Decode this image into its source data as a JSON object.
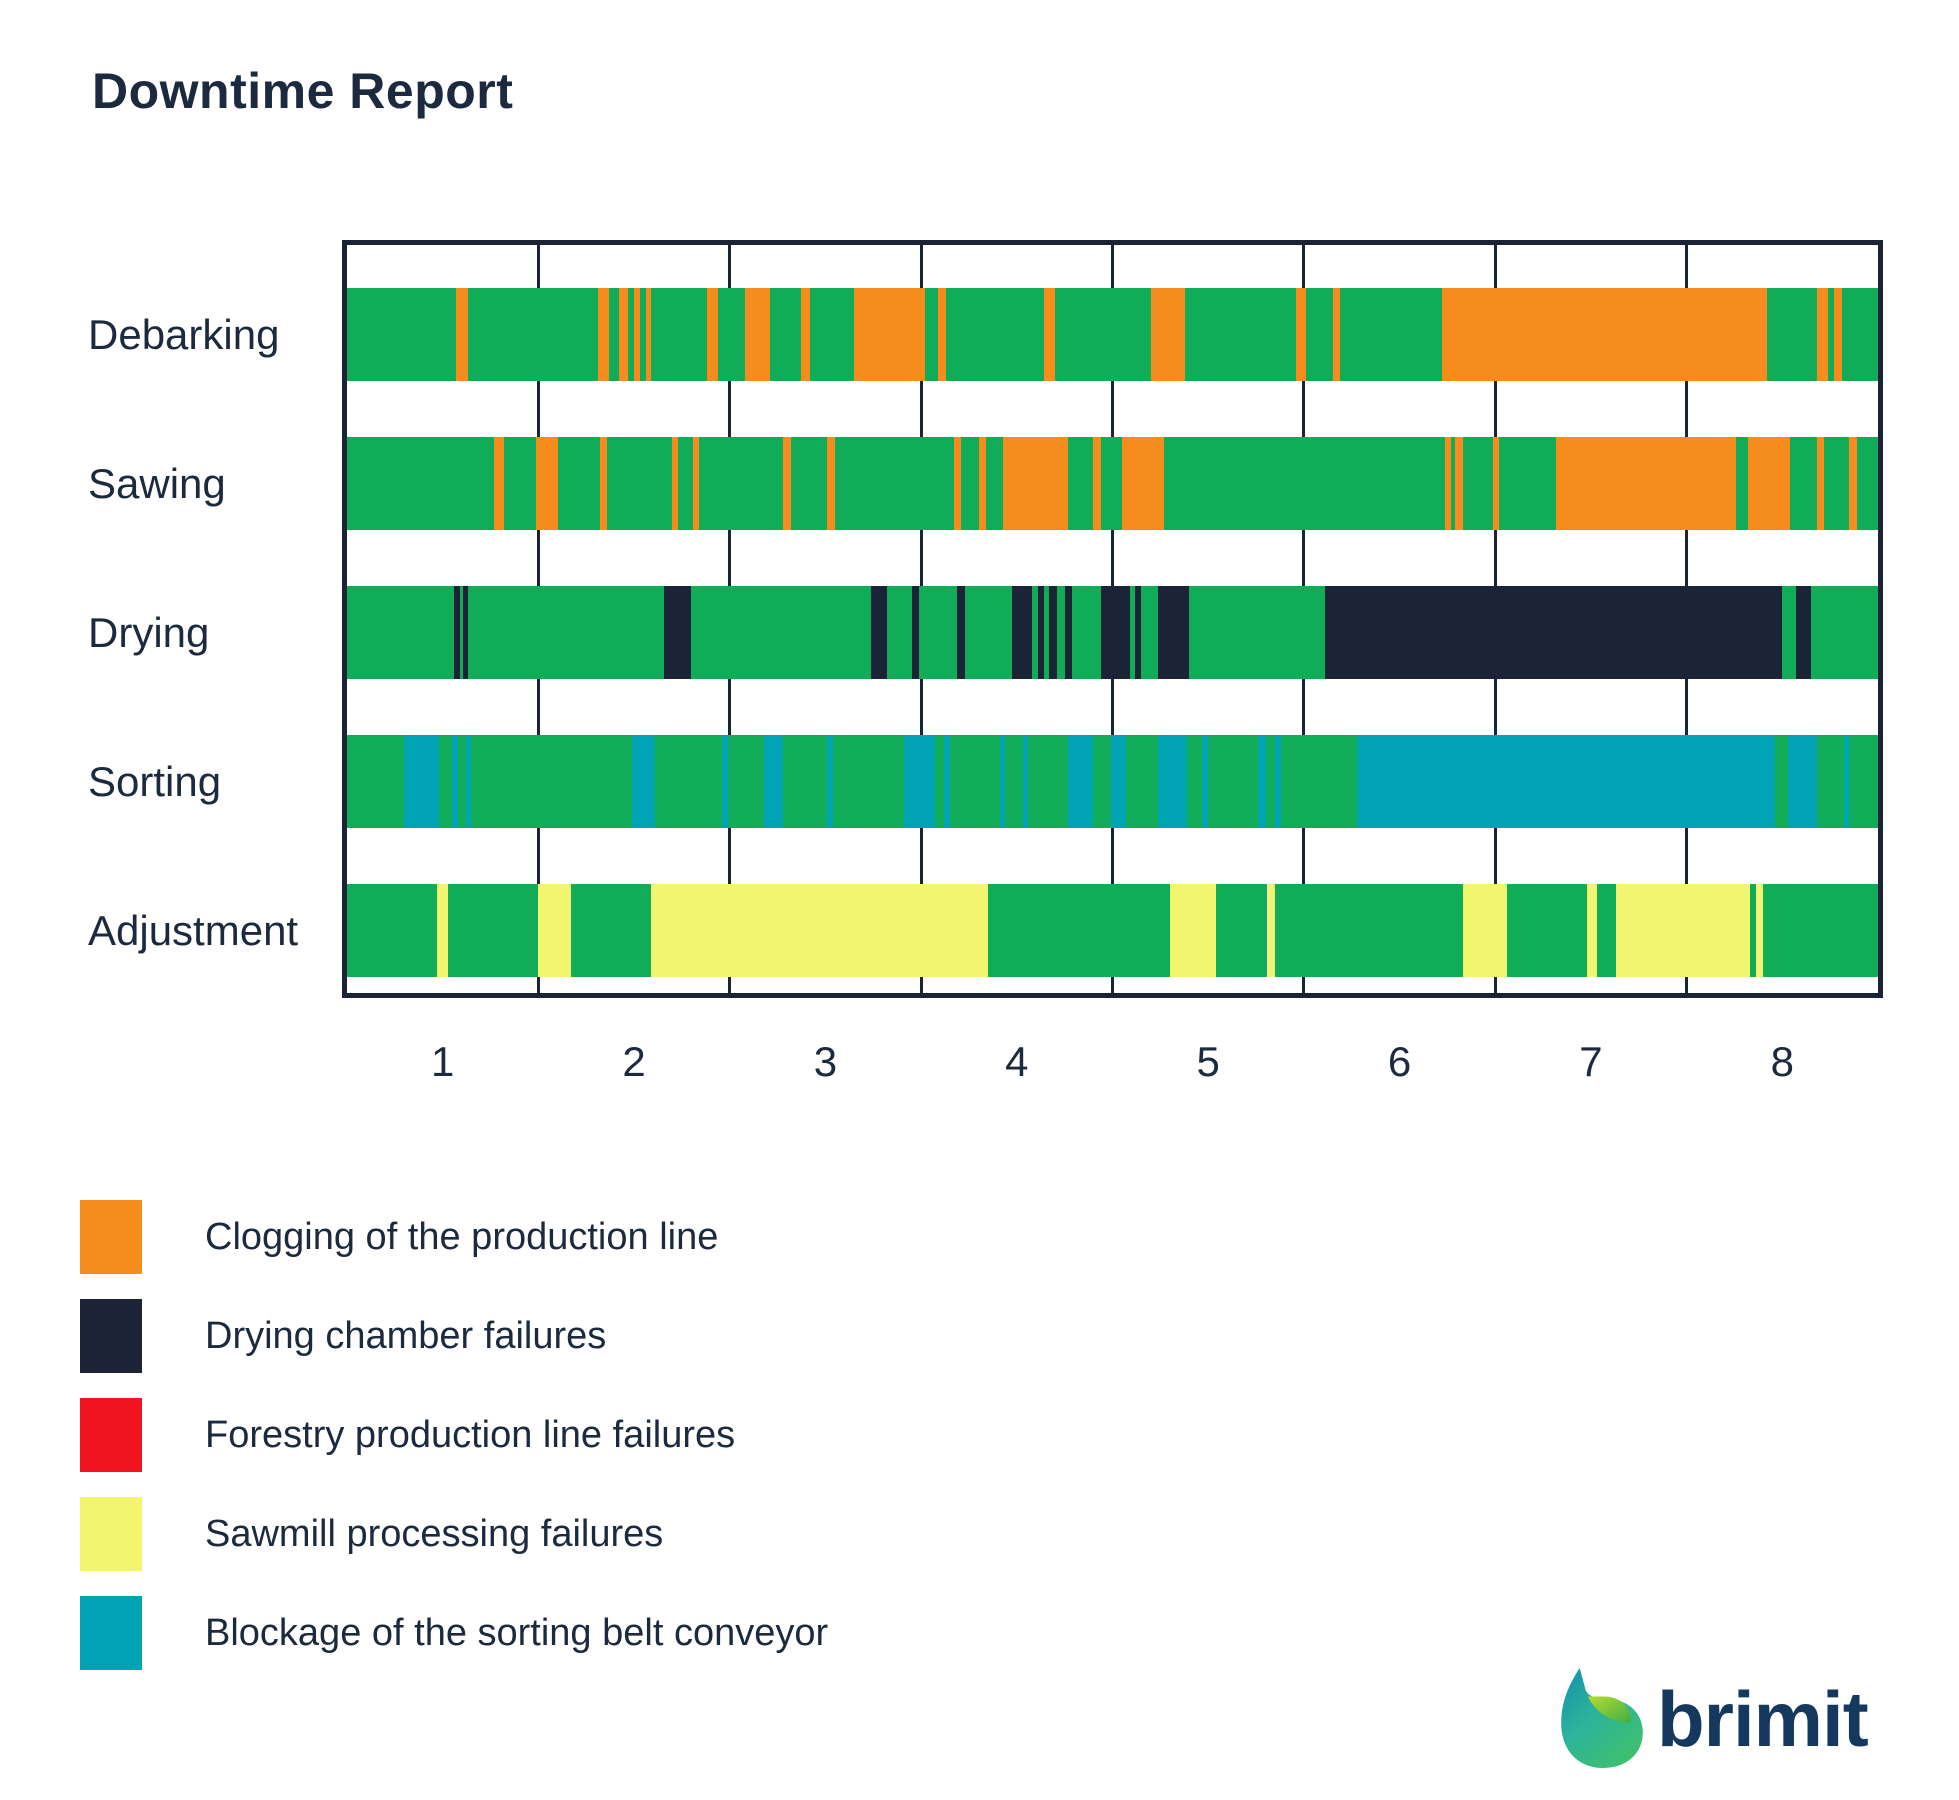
{
  "title": "Downtime Report",
  "colors": {
    "green": "#10AC58",
    "orange": "#F78C1E",
    "navy": "#1B2437",
    "red": "#F0141E",
    "yellow": "#F2F56E",
    "teal": "#00A3B4",
    "text": "#1B2A3E",
    "border": "#1B2437"
  },
  "chart_data": {
    "type": "timeline-bar",
    "x_ticks": [
      "1",
      "2",
      "3",
      "4",
      "5",
      "6",
      "7",
      "8"
    ],
    "x_range": [
      0,
      8
    ],
    "grid": "vertical-unit-boundaries",
    "rows": [
      {
        "label": "Debarking",
        "segments": [
          [
            0,
            0.57,
            "green"
          ],
          [
            0.57,
            0.63,
            "orange"
          ],
          [
            0.63,
            1.31,
            "green"
          ],
          [
            1.31,
            1.37,
            "orange"
          ],
          [
            1.37,
            1.42,
            "green"
          ],
          [
            1.42,
            1.47,
            "orange"
          ],
          [
            1.47,
            1.5,
            "green"
          ],
          [
            1.5,
            1.53,
            "orange"
          ],
          [
            1.53,
            1.56,
            "green"
          ],
          [
            1.56,
            1.59,
            "orange"
          ],
          [
            1.59,
            1.88,
            "green"
          ],
          [
            1.88,
            1.94,
            "orange"
          ],
          [
            1.94,
            2.08,
            "green"
          ],
          [
            2.08,
            2.21,
            "orange"
          ],
          [
            2.21,
            2.37,
            "green"
          ],
          [
            2.37,
            2.42,
            "orange"
          ],
          [
            2.42,
            2.65,
            "green"
          ],
          [
            2.65,
            3.02,
            "orange"
          ],
          [
            3.02,
            3.09,
            "green"
          ],
          [
            3.09,
            3.13,
            "orange"
          ],
          [
            3.13,
            3.64,
            "green"
          ],
          [
            3.64,
            3.7,
            "orange"
          ],
          [
            3.7,
            4.2,
            "green"
          ],
          [
            4.2,
            4.38,
            "orange"
          ],
          [
            4.38,
            4.96,
            "green"
          ],
          [
            4.96,
            5.01,
            "orange"
          ],
          [
            5.01,
            5.15,
            "green"
          ],
          [
            5.15,
            5.19,
            "orange"
          ],
          [
            5.19,
            5.72,
            "green"
          ],
          [
            5.72,
            7.42,
            "orange"
          ],
          [
            7.42,
            7.68,
            "green"
          ],
          [
            7.68,
            7.74,
            "orange"
          ],
          [
            7.74,
            7.77,
            "green"
          ],
          [
            7.77,
            7.81,
            "orange"
          ],
          [
            7.81,
            8,
            "green"
          ]
        ]
      },
      {
        "label": "Sawing",
        "segments": [
          [
            0,
            0.77,
            "green"
          ],
          [
            0.77,
            0.82,
            "orange"
          ],
          [
            0.82,
            0.99,
            "green"
          ],
          [
            0.99,
            1.1,
            "orange"
          ],
          [
            1.1,
            1.32,
            "green"
          ],
          [
            1.32,
            1.36,
            "orange"
          ],
          [
            1.36,
            1.7,
            "green"
          ],
          [
            1.7,
            1.73,
            "orange"
          ],
          [
            1.73,
            1.81,
            "green"
          ],
          [
            1.81,
            1.84,
            "orange"
          ],
          [
            1.84,
            2.28,
            "green"
          ],
          [
            2.28,
            2.32,
            "orange"
          ],
          [
            2.32,
            2.51,
            "green"
          ],
          [
            2.51,
            2.55,
            "orange"
          ],
          [
            2.55,
            3.17,
            "green"
          ],
          [
            3.17,
            3.21,
            "orange"
          ],
          [
            3.21,
            3.3,
            "green"
          ],
          [
            3.3,
            3.34,
            "orange"
          ],
          [
            3.34,
            3.43,
            "green"
          ],
          [
            3.43,
            3.77,
            "orange"
          ],
          [
            3.77,
            3.9,
            "green"
          ],
          [
            3.9,
            3.94,
            "orange"
          ],
          [
            3.94,
            4.05,
            "green"
          ],
          [
            4.05,
            4.27,
            "orange"
          ],
          [
            4.27,
            5.74,
            "green"
          ],
          [
            5.74,
            5.77,
            "orange"
          ],
          [
            5.77,
            5.79,
            "green"
          ],
          [
            5.79,
            5.83,
            "orange"
          ],
          [
            5.83,
            5.99,
            "green"
          ],
          [
            5.99,
            6.02,
            "orange"
          ],
          [
            6.02,
            6.32,
            "green"
          ],
          [
            6.32,
            7.26,
            "orange"
          ],
          [
            7.26,
            7.32,
            "green"
          ],
          [
            7.32,
            7.54,
            "orange"
          ],
          [
            7.54,
            7.68,
            "green"
          ],
          [
            7.68,
            7.72,
            "orange"
          ],
          [
            7.72,
            7.85,
            "green"
          ],
          [
            7.85,
            7.89,
            "orange"
          ],
          [
            7.89,
            8,
            "green"
          ]
        ]
      },
      {
        "label": "Drying",
        "segments": [
          [
            0,
            0.56,
            "green"
          ],
          [
            0.56,
            0.59,
            "navy"
          ],
          [
            0.59,
            0.605,
            "green"
          ],
          [
            0.605,
            0.63,
            "navy"
          ],
          [
            0.63,
            1.655,
            "green"
          ],
          [
            1.655,
            1.8,
            "navy"
          ],
          [
            1.8,
            2.74,
            "green"
          ],
          [
            2.74,
            2.82,
            "navy"
          ],
          [
            2.82,
            2.95,
            "green"
          ],
          [
            2.95,
            2.99,
            "navy"
          ],
          [
            2.99,
            3.19,
            "green"
          ],
          [
            3.19,
            3.23,
            "navy"
          ],
          [
            3.23,
            3.475,
            "green"
          ],
          [
            3.475,
            3.58,
            "navy"
          ],
          [
            3.58,
            3.61,
            "green"
          ],
          [
            3.61,
            3.64,
            "navy"
          ],
          [
            3.64,
            3.67,
            "green"
          ],
          [
            3.67,
            3.71,
            "navy"
          ],
          [
            3.71,
            3.75,
            "green"
          ],
          [
            3.75,
            3.79,
            "navy"
          ],
          [
            3.79,
            3.94,
            "green"
          ],
          [
            3.94,
            4.09,
            "navy"
          ],
          [
            4.09,
            4.12,
            "green"
          ],
          [
            4.12,
            4.15,
            "navy"
          ],
          [
            4.15,
            4.24,
            "green"
          ],
          [
            4.24,
            4.4,
            "navy"
          ],
          [
            4.4,
            5.11,
            "green"
          ],
          [
            5.11,
            7.5,
            "navy"
          ],
          [
            7.5,
            7.57,
            "green"
          ],
          [
            7.57,
            7.65,
            "navy"
          ],
          [
            7.65,
            8,
            "green"
          ]
        ]
      },
      {
        "label": "Sorting",
        "segments": [
          [
            0,
            0.3,
            "green"
          ],
          [
            0.3,
            0.48,
            "teal"
          ],
          [
            0.48,
            0.55,
            "green"
          ],
          [
            0.55,
            0.58,
            "teal"
          ],
          [
            0.58,
            0.62,
            "green"
          ],
          [
            0.62,
            0.65,
            "teal"
          ],
          [
            0.65,
            1.49,
            "green"
          ],
          [
            1.49,
            1.61,
            "teal"
          ],
          [
            1.61,
            1.96,
            "green"
          ],
          [
            1.96,
            1.99,
            "teal"
          ],
          [
            1.99,
            2.18,
            "green"
          ],
          [
            2.18,
            2.28,
            "teal"
          ],
          [
            2.28,
            2.51,
            "green"
          ],
          [
            2.51,
            2.54,
            "teal"
          ],
          [
            2.54,
            2.91,
            "green"
          ],
          [
            2.91,
            3.07,
            "teal"
          ],
          [
            3.07,
            3.12,
            "green"
          ],
          [
            3.12,
            3.15,
            "teal"
          ],
          [
            3.15,
            3.41,
            "green"
          ],
          [
            3.41,
            3.44,
            "teal"
          ],
          [
            3.44,
            3.53,
            "green"
          ],
          [
            3.53,
            3.56,
            "teal"
          ],
          [
            3.56,
            3.77,
            "green"
          ],
          [
            3.77,
            3.9,
            "teal"
          ],
          [
            3.9,
            3.99,
            "green"
          ],
          [
            3.99,
            4.07,
            "teal"
          ],
          [
            4.07,
            4.24,
            "green"
          ],
          [
            4.24,
            4.39,
            "teal"
          ],
          [
            4.39,
            4.47,
            "green"
          ],
          [
            4.47,
            4.5,
            "teal"
          ],
          [
            4.5,
            4.76,
            "green"
          ],
          [
            4.76,
            4.8,
            "teal"
          ],
          [
            4.8,
            4.85,
            "green"
          ],
          [
            4.85,
            4.88,
            "teal"
          ],
          [
            4.88,
            5.28,
            "green"
          ],
          [
            5.28,
            7.46,
            "teal"
          ],
          [
            7.46,
            7.53,
            "green"
          ],
          [
            7.53,
            7.68,
            "teal"
          ],
          [
            7.68,
            7.82,
            "green"
          ],
          [
            7.82,
            7.85,
            "teal"
          ],
          [
            7.85,
            8,
            "green"
          ]
        ]
      },
      {
        "label": "Adjustment",
        "segments": [
          [
            0,
            0.47,
            "green"
          ],
          [
            0.47,
            0.53,
            "yellow"
          ],
          [
            0.53,
            1.0,
            "green"
          ],
          [
            1.0,
            1.17,
            "yellow"
          ],
          [
            1.17,
            1.59,
            "green"
          ],
          [
            1.59,
            3.35,
            "yellow"
          ],
          [
            3.35,
            4.3,
            "green"
          ],
          [
            4.3,
            4.54,
            "yellow"
          ],
          [
            4.54,
            4.81,
            "green"
          ],
          [
            4.81,
            4.85,
            "yellow"
          ],
          [
            4.85,
            5.83,
            "green"
          ],
          [
            5.83,
            6.06,
            "yellow"
          ],
          [
            6.06,
            6.48,
            "green"
          ],
          [
            6.48,
            6.53,
            "yellow"
          ],
          [
            6.53,
            6.63,
            "green"
          ],
          [
            6.63,
            7.33,
            "yellow"
          ],
          [
            7.33,
            7.36,
            "green"
          ],
          [
            7.36,
            7.4,
            "yellow"
          ],
          [
            7.4,
            8,
            "green"
          ]
        ]
      }
    ]
  },
  "legend": [
    {
      "color_key": "orange",
      "label": "Clogging of the production line"
    },
    {
      "color_key": "navy",
      "label": "Drying chamber failures"
    },
    {
      "color_key": "red",
      "label": "Forestry production line failures"
    },
    {
      "color_key": "yellow",
      "label": "Sawmill processing failures"
    },
    {
      "color_key": "teal",
      "label": "Blockage of the sorting belt conveyor"
    }
  ],
  "logo": {
    "text": "brimit"
  }
}
